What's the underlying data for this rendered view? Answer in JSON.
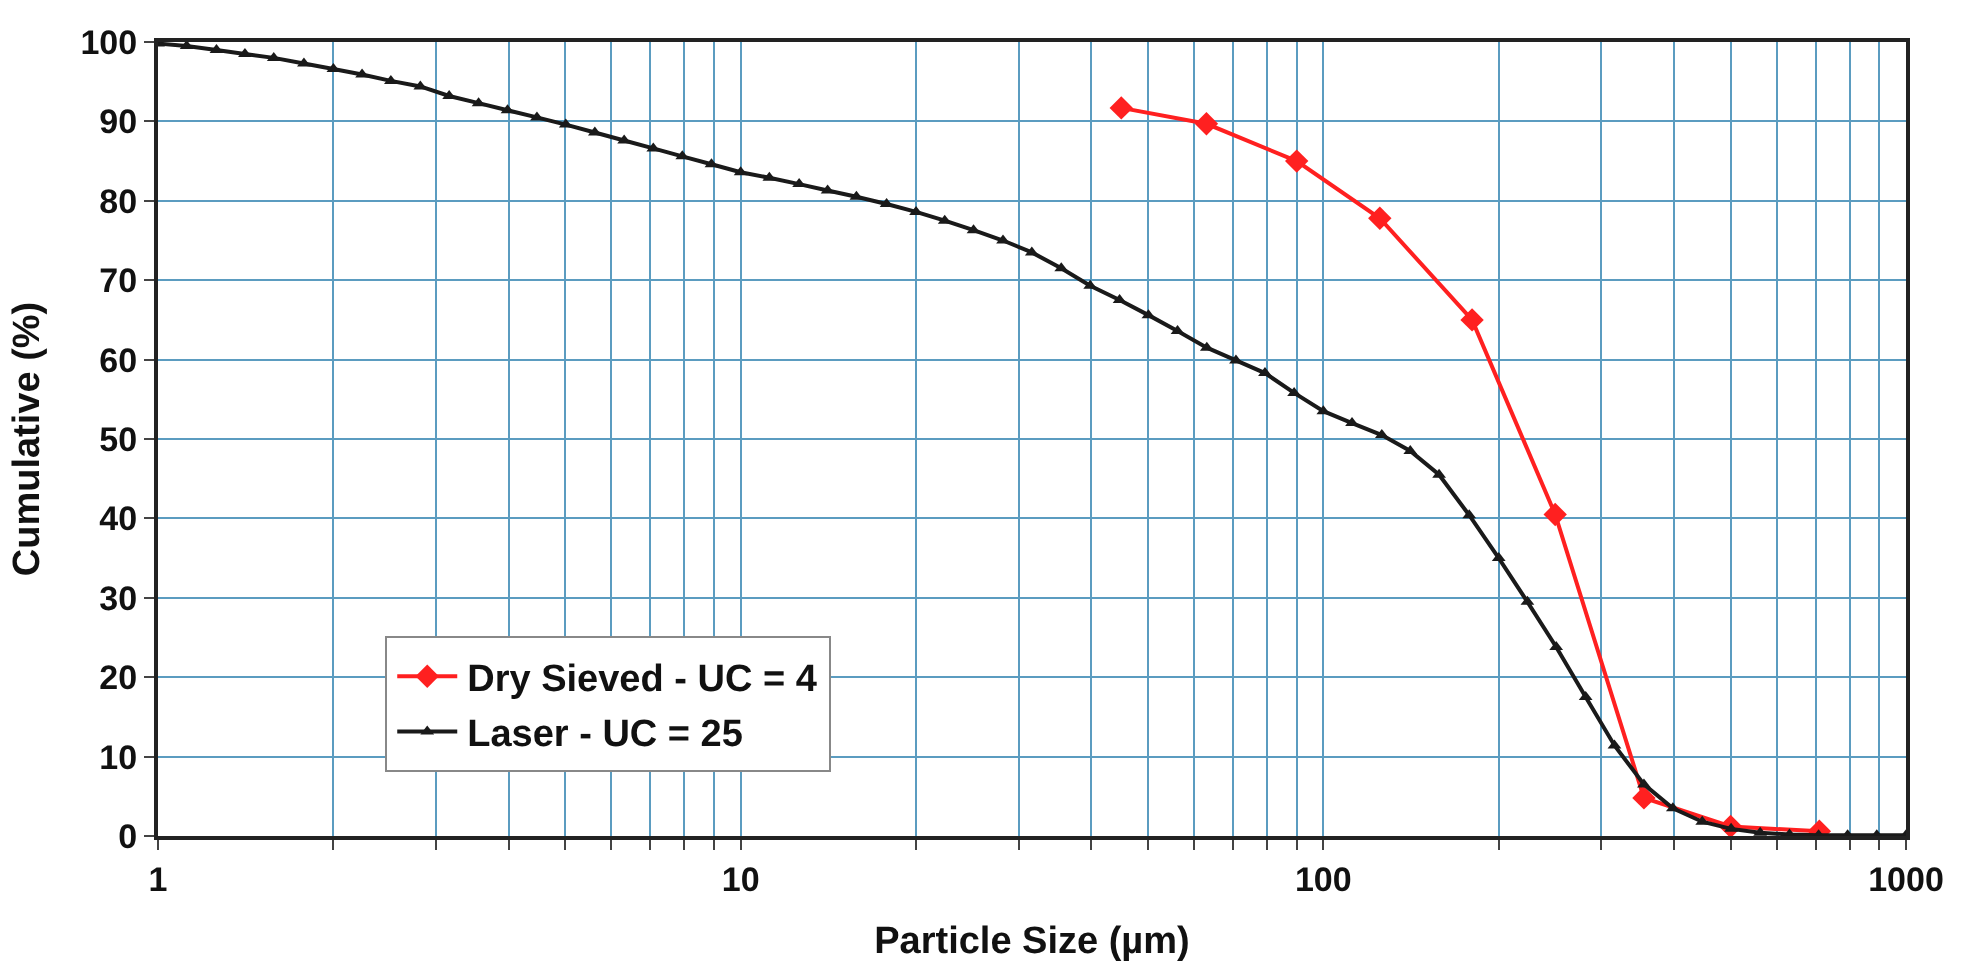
{
  "chart_data": {
    "type": "line",
    "xlabel": "Particle Size (µm)",
    "ylabel": "Cumulative (%)",
    "log": "x",
    "xlim": [
      1,
      1000
    ],
    "xticks": [
      1,
      {
        "value": 2,
        "label": null
      },
      {
        "value": 3,
        "label": null
      },
      {
        "value": 4,
        "label": null
      },
      {
        "value": 5,
        "label": null
      },
      {
        "value": 6,
        "label": null
      },
      {
        "value": 7,
        "label": null
      },
      {
        "value": 8,
        "label": null
      },
      {
        "value": 9,
        "label": null
      },
      10,
      {
        "value": 20,
        "label": null
      },
      {
        "value": 30,
        "label": null
      },
      {
        "value": 40,
        "label": null
      },
      {
        "value": 50,
        "label": null
      },
      {
        "value": 60,
        "label": null
      },
      {
        "value": 70,
        "label": null
      },
      {
        "value": 80,
        "label": null
      },
      {
        "value": 90,
        "label": null
      },
      100,
      {
        "value": 200,
        "label": null
      },
      {
        "value": 300,
        "label": null
      },
      {
        "value": 400,
        "label": null
      },
      {
        "value": 500,
        "label": null
      },
      {
        "value": 600,
        "label": null
      },
      {
        "value": 700,
        "label": null
      },
      {
        "value": 800,
        "label": null
      },
      {
        "value": 900,
        "label": null
      },
      1000
    ],
    "ylim": [
      0,
      100
    ],
    "yticks": [
      0,
      10,
      20,
      30,
      40,
      50,
      60,
      70,
      80,
      90,
      100
    ],
    "grid": true,
    "legend": "bottom left",
    "series": [
      {
        "name": "Dry Sieved - UC = 4",
        "color": "#ff2020",
        "marker": "diamond",
        "x": [
          45,
          63,
          90,
          125,
          180,
          250,
          355,
          500,
          710
        ],
        "values": [
          91.7,
          89.7,
          85,
          77.8,
          65,
          40.5,
          4.8,
          1.2,
          0.6
        ]
      },
      {
        "name": "Laser - UC = 25",
        "color": "#1a1a1a",
        "marker": "triangle",
        "x": [
          1,
          1.12,
          1.26,
          1.41,
          1.58,
          1.78,
          2,
          2.24,
          2.51,
          2.82,
          3.16,
          3.55,
          3.98,
          4.47,
          5.01,
          5.62,
          6.31,
          7.08,
          7.94,
          8.91,
          10,
          11.2,
          12.6,
          14.1,
          15.8,
          17.8,
          20,
          22.4,
          25.1,
          28.2,
          31.6,
          35.5,
          39.8,
          44.7,
          50.1,
          56.2,
          63.1,
          70.8,
          79.4,
          89.1,
          100,
          112,
          126,
          141,
          158,
          178,
          200,
          224,
          251,
          282,
          316,
          355,
          398,
          447,
          501,
          562,
          631,
          708,
          794,
          891,
          1000
        ],
        "values": [
          99.8,
          99.5,
          99.0,
          98.5,
          98.0,
          97.3,
          96.6,
          95.9,
          95.1,
          94.4,
          93.2,
          92.3,
          91.4,
          90.5,
          89.6,
          88.6,
          87.6,
          86.6,
          85.6,
          84.6,
          83.6,
          82.9,
          82.1,
          81.3,
          80.5,
          79.6,
          78.6,
          77.5,
          76.3,
          75.0,
          73.5,
          71.5,
          69.3,
          67.5,
          65.6,
          63.6,
          61.5,
          59.9,
          58.3,
          55.8,
          53.5,
          52,
          50.5,
          48.5,
          45.5,
          40.4,
          35,
          29.5,
          23.8,
          17.5,
          11.4,
          6.5,
          3.5,
          1.8,
          0.9,
          0.4,
          0.2,
          0.1,
          0.1,
          0.1,
          0.1
        ]
      }
    ]
  }
}
